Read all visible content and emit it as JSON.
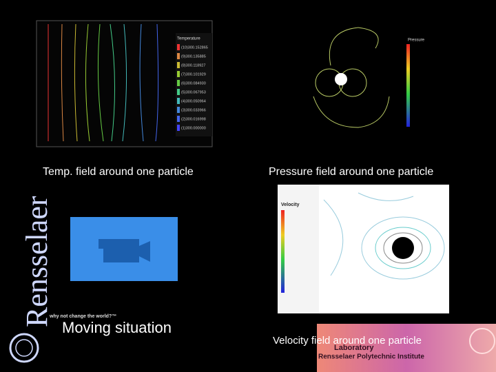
{
  "slide": {
    "panels": [
      {
        "caption": "Temp. field around one particle",
        "legend_title": "Temperature",
        "legend_entries": [
          "(10)300.152865",
          "(9)300.135885",
          "(8)300.118927",
          "(7)300.101929",
          "(6)300.084930",
          "(5)300.067953",
          "(4)300.050964",
          "(3)300.033966",
          "(2)300.016998",
          "(1)300.000000"
        ]
      },
      {
        "caption": "Pressure field around one particle",
        "legend_title": "Pressure"
      },
      {
        "caption": "Velocity field around one particle",
        "legend_title": "Velocity"
      },
      {
        "caption": "Moving situation"
      }
    ],
    "logo": {
      "name": "Rensselaer",
      "tagline": "why not change the world?™"
    },
    "banner": {
      "line1": "Laboratory",
      "line2": "Rensselaer Polytechnic Institute"
    }
  }
}
